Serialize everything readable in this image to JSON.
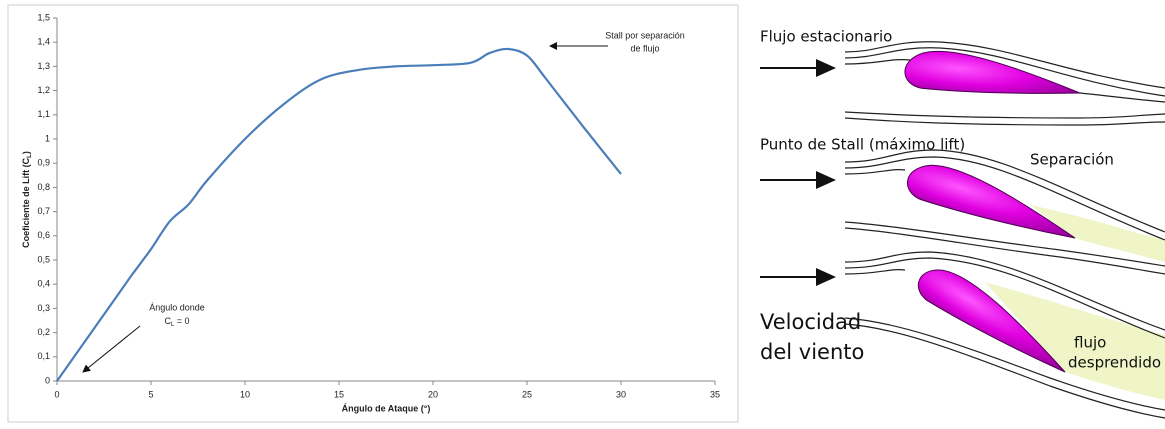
{
  "chart_data": {
    "type": "line",
    "x_label": {
      "text": "Ángulo de Ataque (°)"
    },
    "y_label": {
      "text": "Coeficiente de Lift (C",
      "sub": "L",
      "end": ")"
    },
    "annotations": [
      {
        "lines": [
          "Stall por separación",
          "de flujo"
        ]
      },
      {
        "lines": [
          "Ángulo donde"
        ],
        "sub_line": {
          "text": "C",
          "sub": "L",
          "end": " = 0"
        }
      }
    ],
    "x": [
      0,
      1,
      2,
      3,
      4,
      5,
      6,
      7,
      8,
      10,
      12,
      14,
      16,
      18,
      20,
      22,
      23,
      24,
      25,
      26,
      28,
      30
    ],
    "series": [
      {
        "name": "CL",
        "color": "#4a7ebb",
        "values": [
          0,
          0.11,
          0.22,
          0.33,
          0.44,
          0.545,
          0.66,
          0.73,
          0.83,
          1.0,
          1.14,
          1.245,
          1.285,
          1.3,
          1.305,
          1.315,
          1.355,
          1.372,
          1.345,
          1.25,
          1.05,
          0.855
        ]
      }
    ],
    "xlim": [
      0,
      35
    ],
    "xticks": [
      0,
      5,
      10,
      15,
      20,
      25,
      30,
      35
    ],
    "ylim": [
      0,
      1.5
    ],
    "yticks": [
      0,
      {
        "value": 0.1,
        "label": "0,1"
      },
      {
        "value": 0.2,
        "label": "0,2"
      },
      {
        "value": 0.3,
        "label": "0,3"
      },
      {
        "value": 0.4,
        "label": "0,4"
      },
      {
        "value": 0.5,
        "label": "0,5"
      },
      {
        "value": 0.6,
        "label": "0,6"
      },
      {
        "value": 0.7,
        "label": "0,7"
      },
      {
        "value": 0.8,
        "label": "0,8"
      },
      {
        "value": 0.9,
        "label": "0,9"
      },
      1,
      {
        "value": 1.1,
        "label": "1,1"
      },
      {
        "value": 1.2,
        "label": "1,2"
      },
      {
        "value": 1.3,
        "label": "1,3"
      },
      {
        "value": 1.4,
        "label": "1,4"
      },
      {
        "value": 1.5,
        "label": "1,5"
      }
    ]
  },
  "diagram": {
    "panels": [
      {
        "label": "Flujo estacionario"
      },
      {
        "label": "Punto de Stall (máximo lift)",
        "note": "Separación"
      },
      {
        "note_lines": [
          "flujo",
          "desprendido"
        ]
      }
    ],
    "wind_label": [
      "Velocidad",
      "del viento"
    ]
  }
}
